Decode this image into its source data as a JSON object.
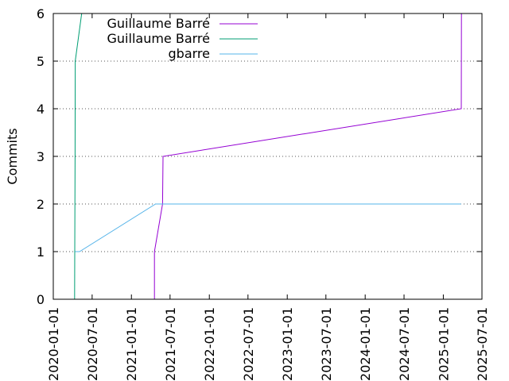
{
  "chart_data": {
    "type": "line",
    "title": "",
    "xlabel": "",
    "ylabel": "Commits",
    "x_type": "date",
    "xlim": [
      "2020-01-01",
      "2025-07-01"
    ],
    "ylim": [
      0,
      6
    ],
    "x_ticks": [
      "2020-01-01",
      "2020-07-01",
      "2021-01-01",
      "2021-07-01",
      "2022-01-01",
      "2022-07-01",
      "2023-01-01",
      "2023-07-01",
      "2024-01-01",
      "2024-07-01",
      "2025-01-01",
      "2025-07-01"
    ],
    "y_ticks": [
      0,
      1,
      2,
      3,
      4,
      5,
      6
    ],
    "grid": "horizontal dotted",
    "legend_position": "top-left",
    "series": [
      {
        "name": "Guillaume Barré",
        "color": "#9400d3",
        "points": [
          {
            "x": "2021-04-19",
            "y": 0
          },
          {
            "x": "2021-04-19",
            "y": 1
          },
          {
            "x": "2021-05-27",
            "y": 2
          },
          {
            "x": "2021-05-29",
            "y": 3
          },
          {
            "x": "2025-03-26",
            "y": 4
          },
          {
            "x": "2025-03-27",
            "y": 6
          }
        ]
      },
      {
        "name": "Guillaume Barré",
        "color": "#009e73",
        "points": [
          {
            "x": "2020-04-10",
            "y": 0
          },
          {
            "x": "2020-04-12",
            "y": 3
          },
          {
            "x": "2020-04-13",
            "y": 5
          },
          {
            "x": "2020-05-13",
            "y": 6
          }
        ]
      },
      {
        "name": "gbarre",
        "color": "#56b4e9",
        "points": [
          {
            "x": "2020-04-12",
            "y": 1
          },
          {
            "x": "2020-05-03",
            "y": 1
          },
          {
            "x": "2021-04-24",
            "y": 2
          },
          {
            "x": "2025-03-25",
            "y": 2
          }
        ]
      }
    ]
  }
}
